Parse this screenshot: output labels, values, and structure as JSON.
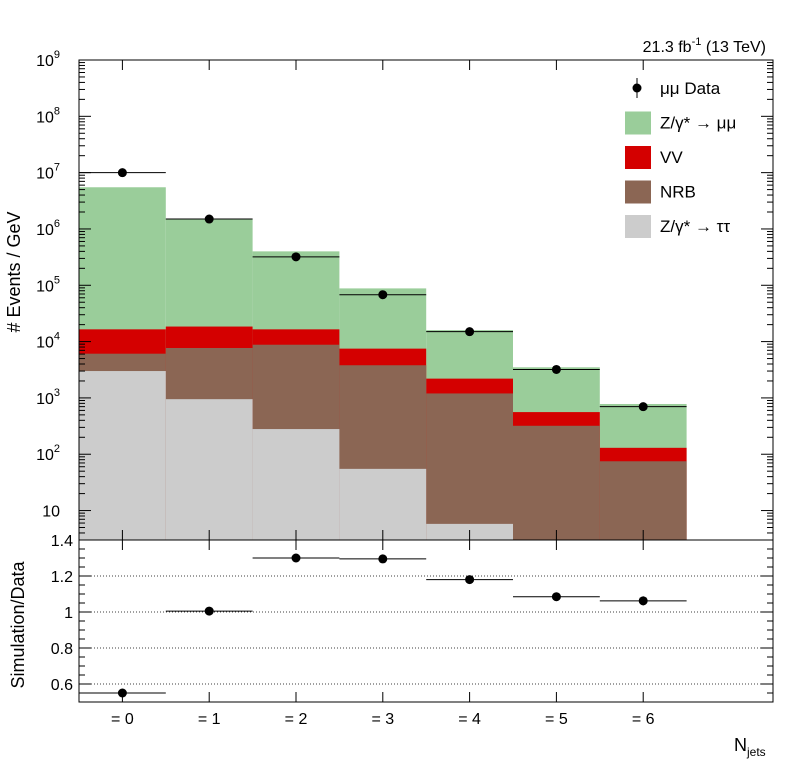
{
  "header": {
    "luminosity": "21.3 fb",
    "luminosity_sup": "-1",
    "energy": "(13 TeV)"
  },
  "chart_data": [
    {
      "type": "bar",
      "stacked": true,
      "log_y": true,
      "ylabel": "# Events / GeV",
      "ylim": [
        3,
        1000000000
      ],
      "y_ticks": [
        {
          "value": 10,
          "base": "10",
          "exp": ""
        },
        {
          "value": 100,
          "base": "10",
          "exp": "2"
        },
        {
          "value": 1000,
          "base": "10",
          "exp": "3"
        },
        {
          "value": 10000,
          "base": "10",
          "exp": "4"
        },
        {
          "value": 100000,
          "base": "10",
          "exp": "5"
        },
        {
          "value": 1000000,
          "base": "10",
          "exp": "6"
        },
        {
          "value": 10000000,
          "base": "10",
          "exp": "7"
        },
        {
          "value": 100000000,
          "base": "10",
          "exp": "8"
        },
        {
          "value": 1000000000,
          "base": "10",
          "exp": "9"
        }
      ],
      "categories": [
        "= 0",
        "= 1",
        "= 2",
        "= 3",
        "= 4",
        "= 5",
        "= 6"
      ],
      "series": [
        {
          "name": "Z/γ* → ττ",
          "color": "#cccccc",
          "cumulative": [
            3000,
            950,
            280,
            55,
            5.8,
            3.0,
            0
          ]
        },
        {
          "name": "NRB",
          "color": "#8b6654",
          "cumulative": [
            6100,
            7700,
            8800,
            3800,
            1200,
            320,
            75
          ]
        },
        {
          "name": "VV",
          "color": "#d40000",
          "cumulative": [
            16500,
            18500,
            16500,
            7500,
            2200,
            560,
            130
          ]
        },
        {
          "name": "Z/γ* → μμ",
          "color": "#9acd9a",
          "cumulative": [
            5500000,
            1500000,
            400000,
            88000,
            16000,
            3500,
            780
          ]
        }
      ],
      "data": {
        "name": "μμ Data",
        "values": [
          10000000,
          1500000,
          320000,
          68000,
          15000,
          3200,
          700
        ]
      },
      "legend_position": "top-right",
      "legend": [
        {
          "label": "μμ Data",
          "kind": "marker"
        },
        {
          "label": "Z/γ* → μμ",
          "kind": "fill",
          "color": "#9acd9a"
        },
        {
          "label": "VV",
          "kind": "fill",
          "color": "#d40000"
        },
        {
          "label": "NRB",
          "kind": "fill",
          "color": "#8b6654"
        },
        {
          "label": "Z/γ* → ττ",
          "kind": "fill",
          "color": "#cccccc"
        }
      ]
    },
    {
      "type": "scatter",
      "ylabel": "Simulation/Data",
      "xlabel": "N",
      "xlabel_sub": "jets",
      "ylim": [
        0.5,
        1.4
      ],
      "y_ticks": [
        "0.6",
        "0.8",
        "1",
        "1.2",
        "1.4"
      ],
      "grid": true,
      "categories": [
        "= 0",
        "= 1",
        "= 2",
        "= 3",
        "= 4",
        "= 5",
        "= 6"
      ],
      "values": [
        0.55,
        1.005,
        1.3,
        1.295,
        1.18,
        1.085,
        1.062
      ],
      "errors": [
        0.004,
        0.004,
        0.005,
        0.006,
        0.008,
        0.012,
        0.025
      ]
    }
  ]
}
